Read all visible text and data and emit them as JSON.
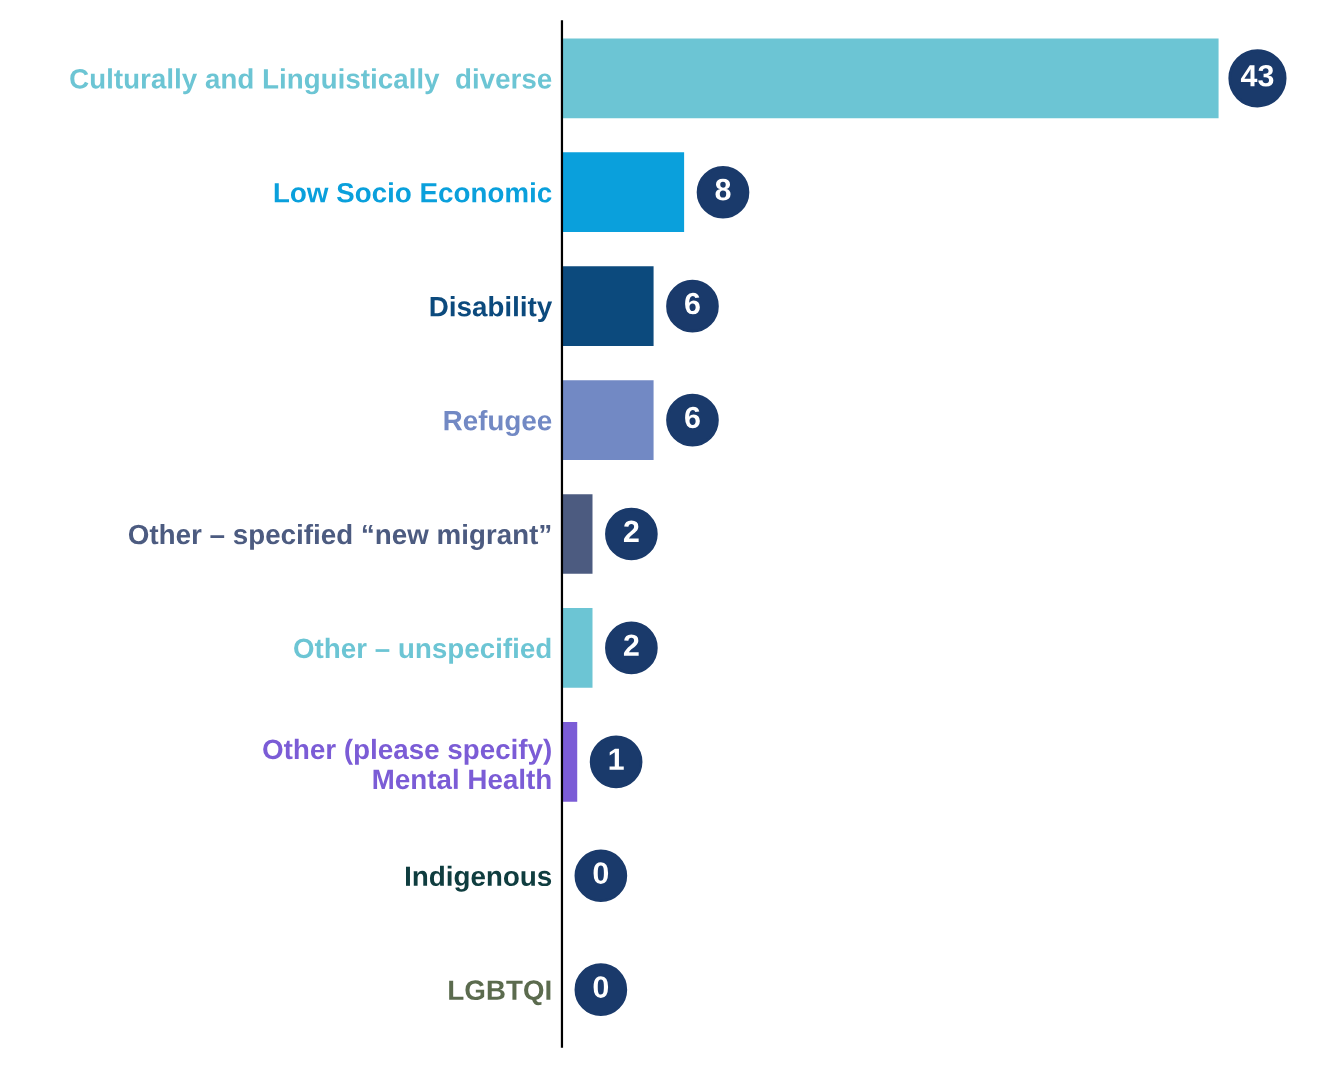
{
  "chart_data": {
    "type": "bar",
    "orientation": "horizontal",
    "categories": [
      "Culturally and Linguistically  diverse",
      "Low Socio Economic",
      "Disability",
      "Refugee",
      "Other – specified “new migrant”",
      "Other – unspecified",
      "Other (please specify)\nMental Health",
      "Indigenous",
      "LGBTQI"
    ],
    "values": [
      43,
      8,
      6,
      6,
      2,
      2,
      1,
      0,
      0
    ],
    "colors": [
      "#6cc5d4",
      "#0aa0dc",
      "#0c4a7d",
      "#7289c4",
      "#4c5b80",
      "#6cc5d4",
      "#7b5cd6",
      "#0f3d3f",
      "#5b6b4e"
    ],
    "data_labels": true,
    "tick_labels": "y",
    "grid": false,
    "legend": false
  }
}
